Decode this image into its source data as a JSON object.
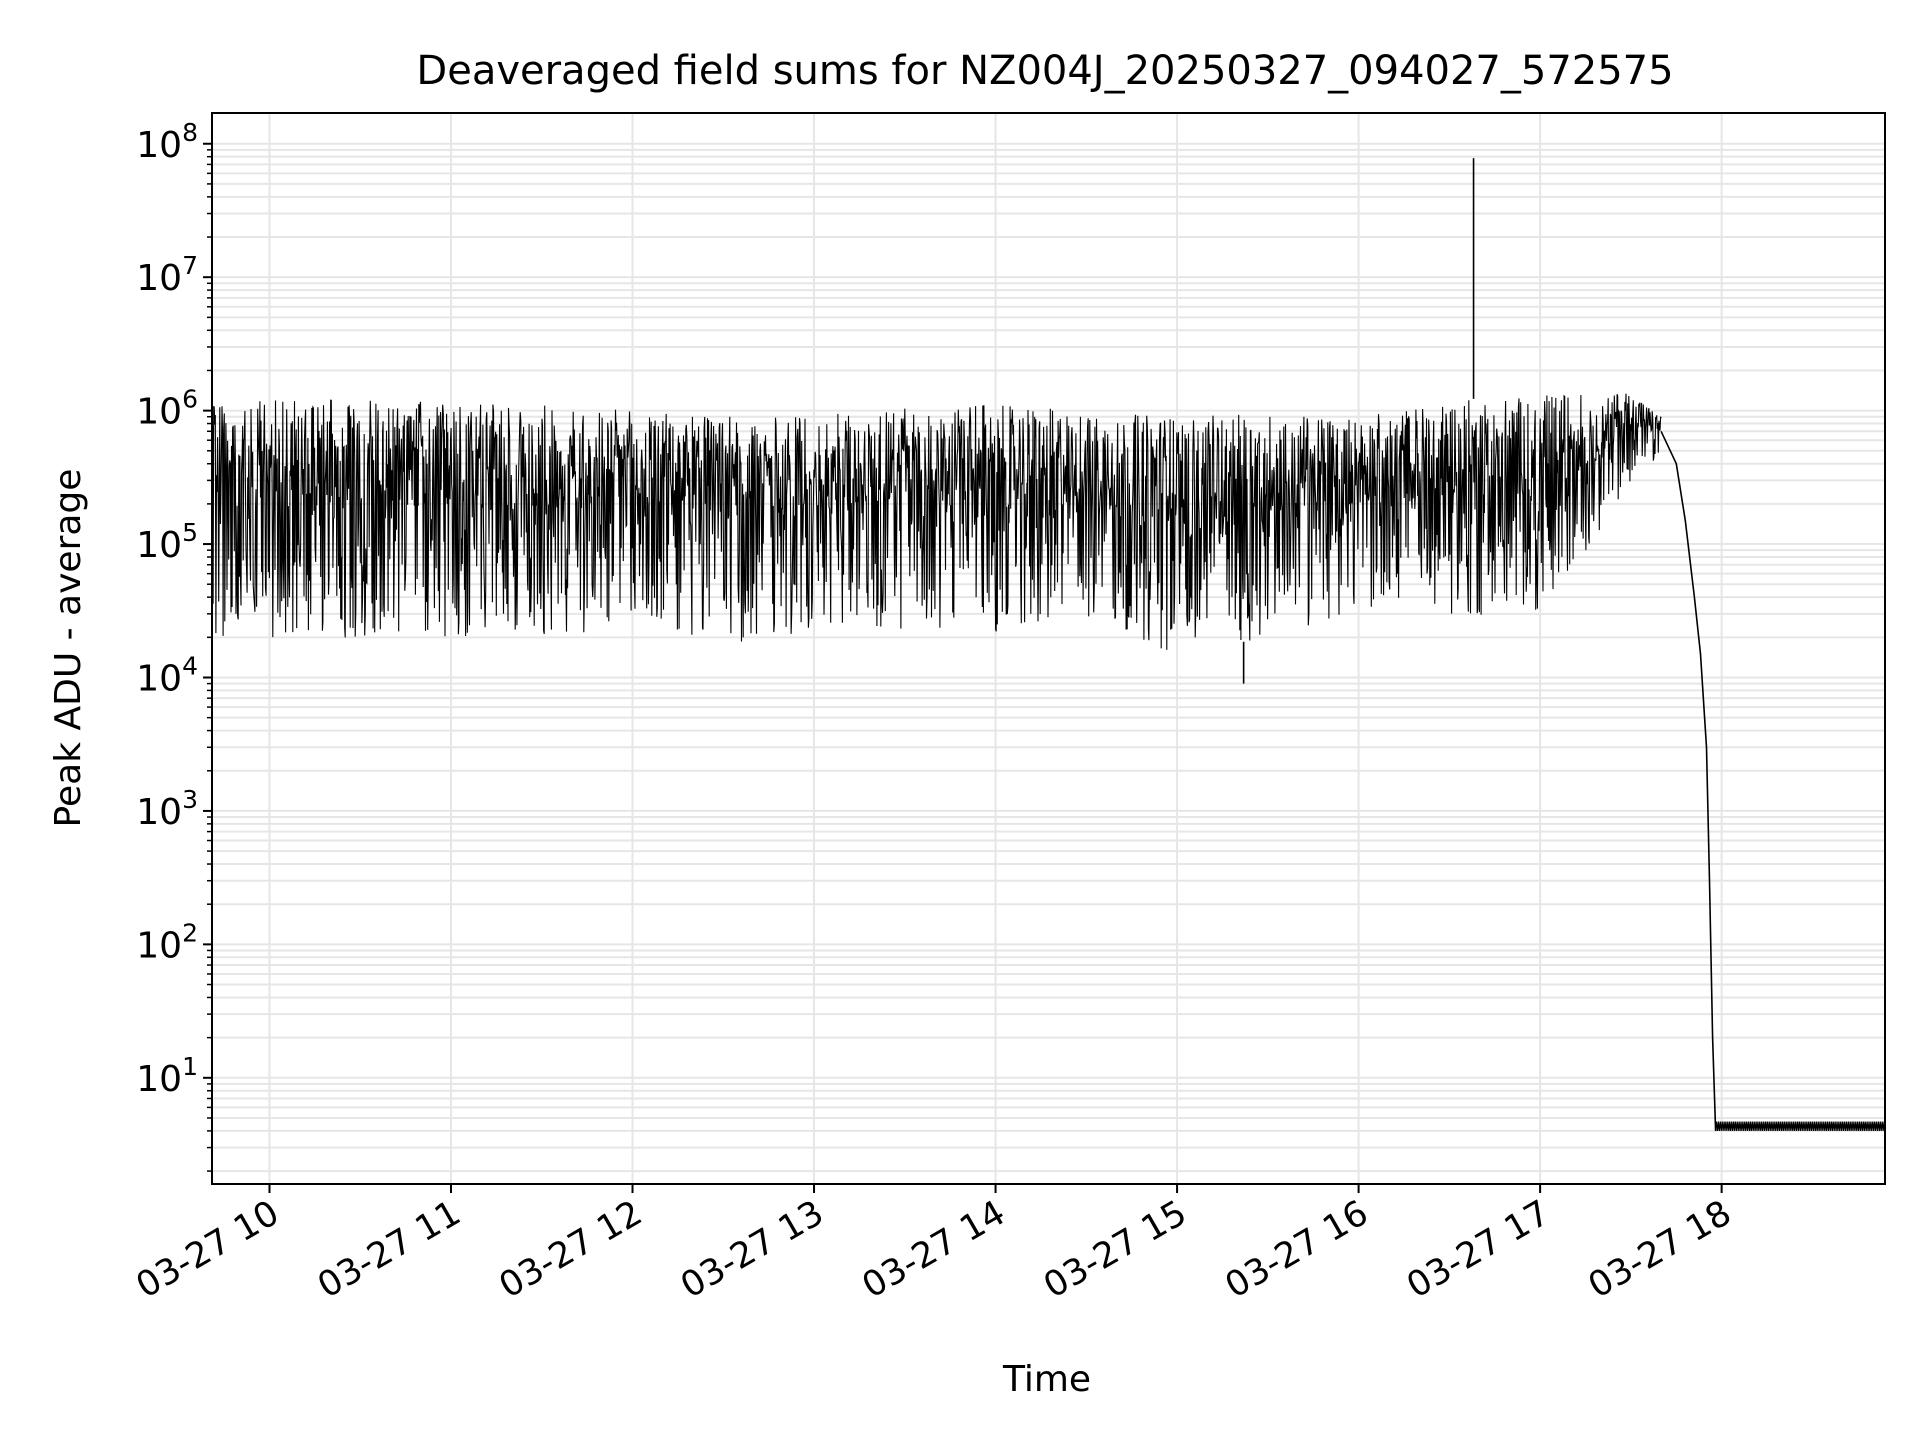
{
  "chart_data": {
    "type": "line",
    "title": "Deaveraged field sums for NZ004J_20250327_094027_572575",
    "xlabel": "Time",
    "ylabel": "Peak ADU - average",
    "yscale": "log",
    "grid": true,
    "legend": "none",
    "line_color": "#000000",
    "grid_color": "#e6e6e6",
    "xlim": [
      "2025-03-27 09:41",
      "2025-03-27 18:54"
    ],
    "ylim": [
      1.6,
      170000000
    ],
    "x_ticks": [
      {
        "time": "2025-03-27 10:00",
        "label": "03-27 10"
      },
      {
        "time": "2025-03-27 11:00",
        "label": "03-27 11"
      },
      {
        "time": "2025-03-27 12:00",
        "label": "03-27 12"
      },
      {
        "time": "2025-03-27 13:00",
        "label": "03-27 13"
      },
      {
        "time": "2025-03-27 14:00",
        "label": "03-27 14"
      },
      {
        "time": "2025-03-27 15:00",
        "label": "03-27 15"
      },
      {
        "time": "2025-03-27 16:00",
        "label": "03-27 16"
      },
      {
        "time": "2025-03-27 17:00",
        "label": "03-27 17"
      },
      {
        "time": "2025-03-27 18:00",
        "label": "03-27 18"
      }
    ],
    "y_ticks": [
      {
        "value": 10,
        "base": "10",
        "exp": "1"
      },
      {
        "value": 100,
        "base": "10",
        "exp": "2"
      },
      {
        "value": 1000,
        "base": "10",
        "exp": "3"
      },
      {
        "value": 10000,
        "base": "10",
        "exp": "4"
      },
      {
        "value": 100000,
        "base": "10",
        "exp": "5"
      },
      {
        "value": 1000000,
        "base": "10",
        "exp": "6"
      },
      {
        "value": 10000000,
        "base": "10",
        "exp": "7"
      },
      {
        "value": 100000000,
        "base": "10",
        "exp": "8"
      }
    ],
    "series": [
      {
        "envelope": [
          {
            "time": "2025-03-27 09:41",
            "low": 20000,
            "high": 1100000
          },
          {
            "time": "2025-03-27 10:00",
            "low": 20000,
            "high": 1200000
          },
          {
            "time": "2025-03-27 10:30",
            "low": 18000,
            "high": 1200000
          },
          {
            "time": "2025-03-27 11:00",
            "low": 20000,
            "high": 1150000
          },
          {
            "time": "2025-03-27 11:30",
            "low": 20000,
            "high": 1100000
          },
          {
            "time": "2025-03-27 12:00",
            "low": 22000,
            "high": 1000000
          },
          {
            "time": "2025-03-27 12:30",
            "low": 18000,
            "high": 900000
          },
          {
            "time": "2025-03-27 13:00",
            "low": 20000,
            "high": 900000
          },
          {
            "time": "2025-03-27 13:30",
            "low": 22000,
            "high": 1100000
          },
          {
            "time": "2025-03-27 14:00",
            "low": 22000,
            "high": 1100000
          },
          {
            "time": "2025-03-27 14:30",
            "low": 25000,
            "high": 1000000
          },
          {
            "time": "2025-03-27 15:00",
            "low": 15000,
            "high": 900000
          },
          {
            "time": "2025-03-27 15:30",
            "low": 20000,
            "high": 950000
          },
          {
            "time": "2025-03-27 16:00",
            "low": 28000,
            "high": 900000
          },
          {
            "time": "2025-03-27 16:30",
            "low": 28000,
            "high": 1200000
          },
          {
            "time": "2025-03-27 17:00",
            "low": 30000,
            "high": 1300000
          },
          {
            "time": "2025-03-27 17:15",
            "low": 80000,
            "high": 1350000
          },
          {
            "time": "2025-03-27 17:30",
            "low": 300000,
            "high": 1400000
          },
          {
            "time": "2025-03-27 17:40",
            "low": 450000,
            "high": 900000
          }
        ],
        "spikes": [
          {
            "time": "2025-03-27 15:22",
            "value": 9000
          },
          {
            "time": "2025-03-27 16:38",
            "value": 78000000
          }
        ],
        "falloff": [
          {
            "time": "2025-03-27 17:40",
            "value": 700000
          },
          {
            "time": "2025-03-27 17:45",
            "value": 400000
          },
          {
            "time": "2025-03-27 17:48",
            "value": 150000
          },
          {
            "time": "2025-03-27 17:51",
            "value": 40000
          },
          {
            "time": "2025-03-27 17:53",
            "value": 15000
          },
          {
            "time": "2025-03-27 17:55",
            "value": 3000
          },
          {
            "time": "2025-03-27 17:56",
            "value": 300
          },
          {
            "time": "2025-03-27 17:57",
            "value": 20
          },
          {
            "time": "2025-03-27 17:58",
            "value": 4
          }
        ],
        "floor": {
          "start": "2025-03-27 17:58",
          "end": "2025-03-27 18:54",
          "low": 4,
          "high": 4.7
        }
      }
    ]
  }
}
